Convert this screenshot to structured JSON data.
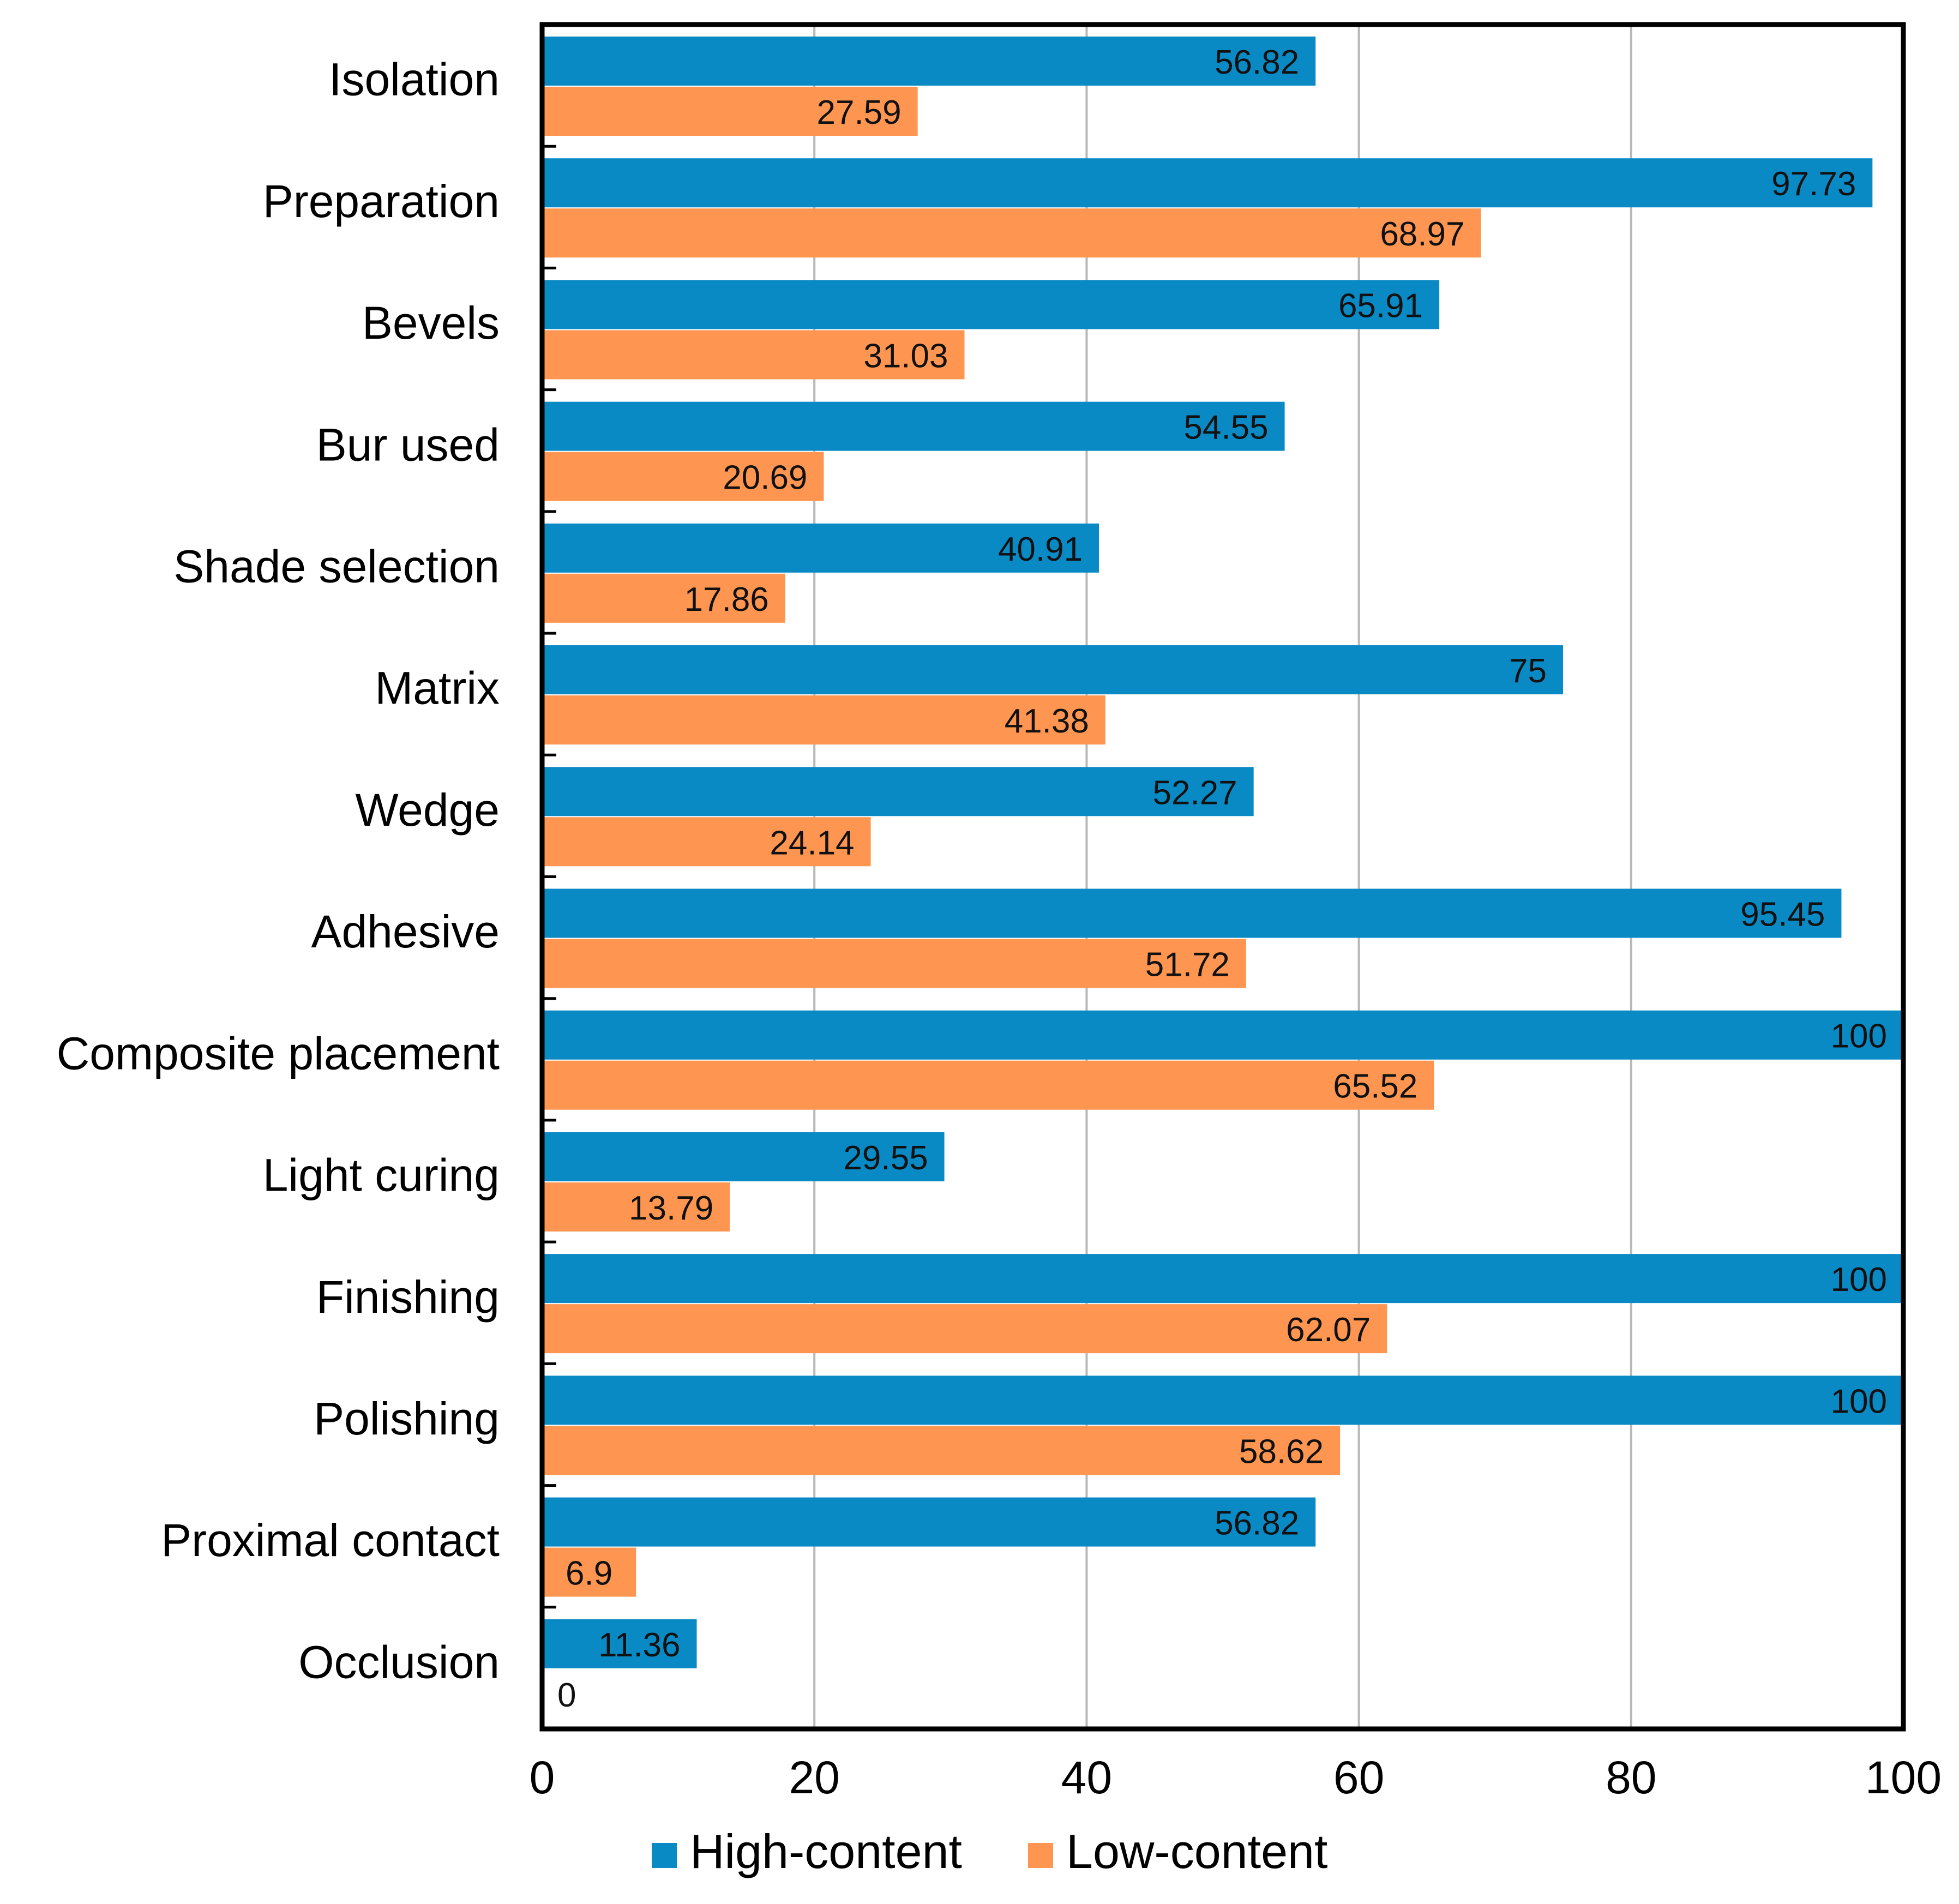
{
  "chart_data": {
    "type": "bar",
    "orientation": "horizontal",
    "categories": [
      "Isolation",
      "Preparation",
      "Bevels",
      "Bur used",
      "Shade selection",
      "Matrix",
      "Wedge",
      "Adhesive",
      "Composite placement",
      "Light curing",
      "Finishing",
      "Polishing",
      "Proximal contact",
      "Occlusion"
    ],
    "series": [
      {
        "name": "High-content",
        "color": "#0a8ac4",
        "values": [
          56.82,
          97.73,
          65.91,
          54.55,
          40.91,
          75,
          52.27,
          95.45,
          100,
          29.55,
          100,
          100,
          56.82,
          11.36
        ]
      },
      {
        "name": "Low-content",
        "color": "#fe9652",
        "values": [
          27.59,
          68.97,
          31.03,
          20.69,
          17.86,
          41.38,
          24.14,
          51.72,
          65.52,
          13.79,
          62.07,
          58.62,
          6.9,
          0
        ]
      }
    ],
    "xlim": [
      0,
      100
    ],
    "xticks": [
      0,
      20,
      40,
      60,
      80,
      100
    ],
    "grid": "vertical",
    "legend": "bottom",
    "title": "",
    "xlabel": "",
    "ylabel": ""
  }
}
